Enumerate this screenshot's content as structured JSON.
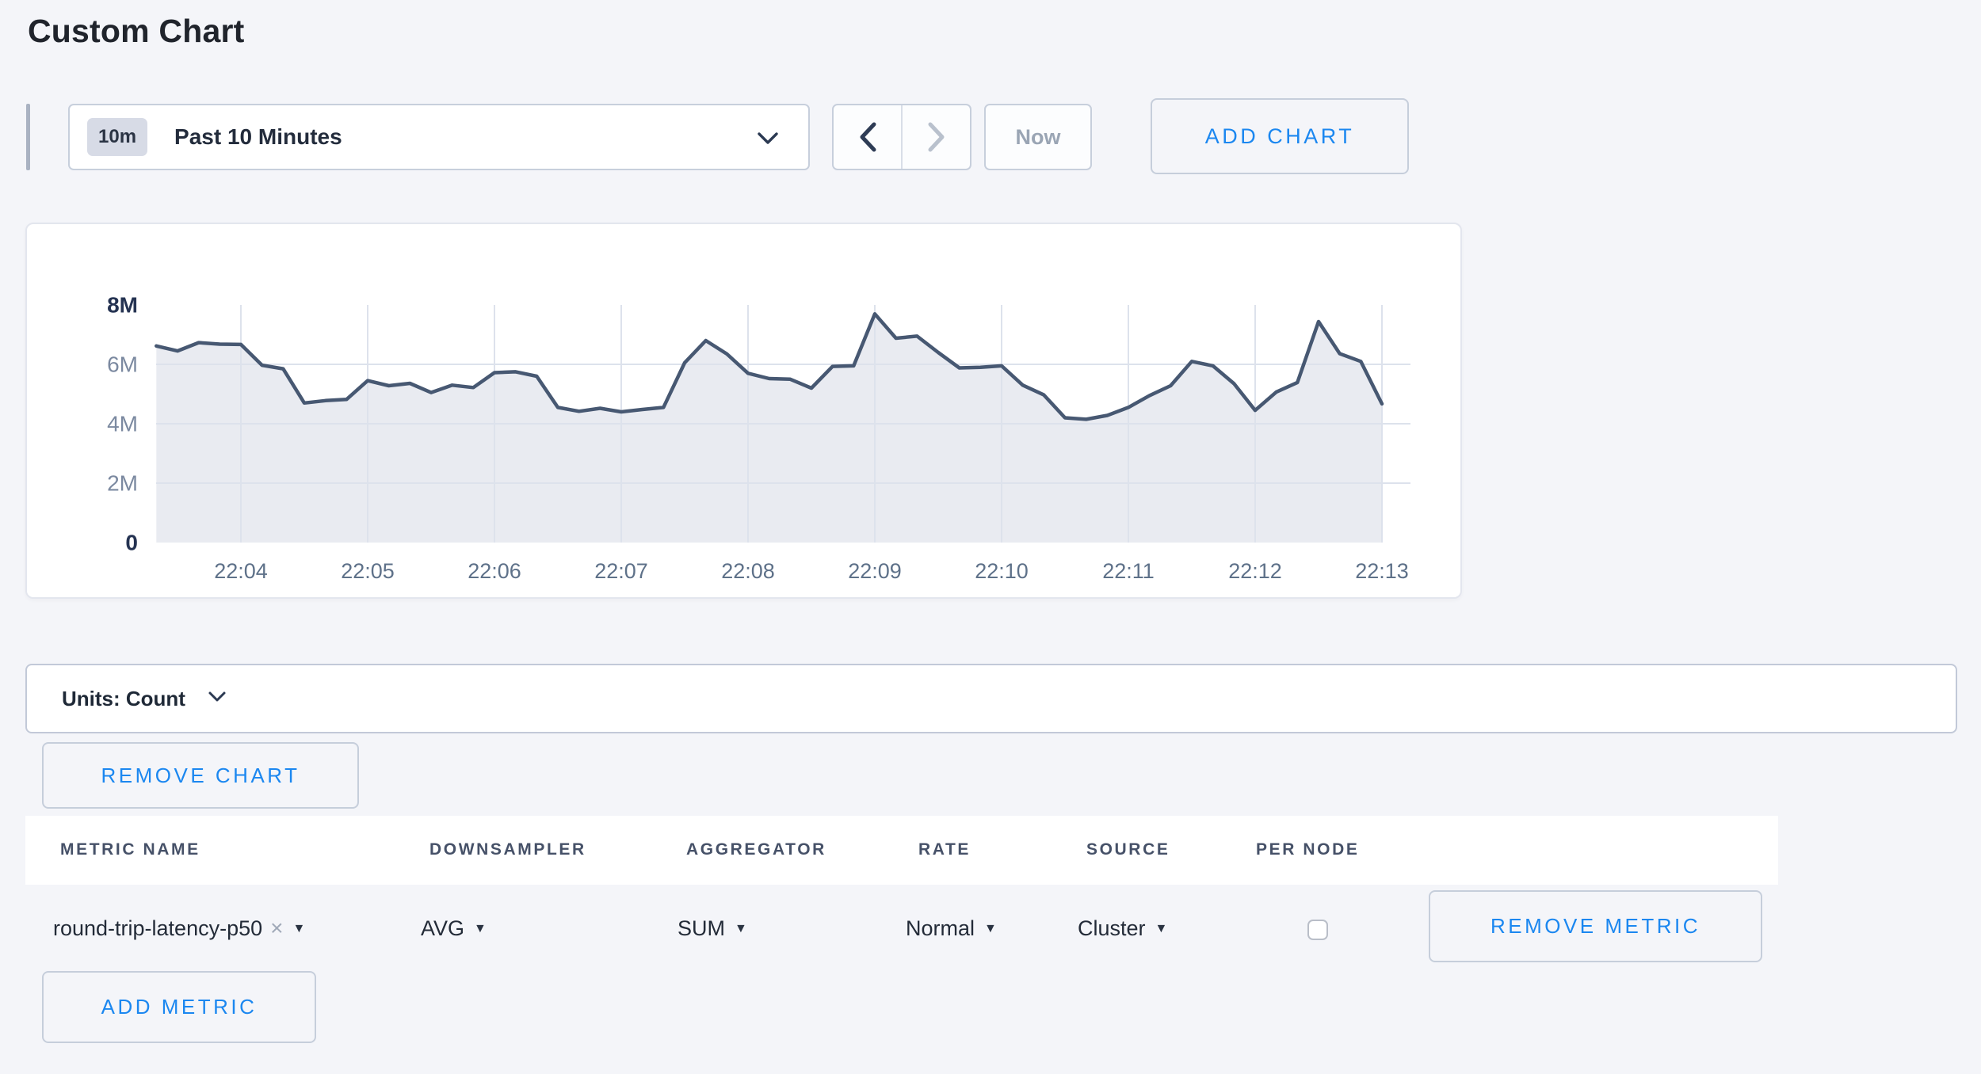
{
  "page": {
    "title": "Custom Chart"
  },
  "colors": {
    "accent_blue": "#1b87f0",
    "line": "#475872",
    "fill": "#e9ebf1",
    "grid": "#dde2ec",
    "axis_strong": "#253352",
    "axis_muted": "#7b89a0",
    "x_label": "#5e7189",
    "page_bg": "#f4f5f9"
  },
  "toolbar": {
    "range_badge": "10m",
    "range_label": "Past 10 Minutes",
    "prev_icon": "chevron-left",
    "next_icon": "chevron-right",
    "now_label": "Now",
    "add_chart_label": "ADD CHART"
  },
  "chart_data": {
    "type": "area",
    "title": "",
    "ylabel": "count",
    "value_unit": "millions",
    "ylim": [
      0,
      8000000
    ],
    "y_ticks": [
      "0",
      "2M",
      "4M",
      "6M",
      "8M"
    ],
    "x_ticks": [
      "22:04",
      "22:05",
      "22:06",
      "22:07",
      "22:08",
      "22:09",
      "22:10",
      "22:11",
      "22:12",
      "22:13"
    ],
    "grid": true,
    "legend": "none",
    "x": [
      "22:03:20",
      "22:03:30",
      "22:03:40",
      "22:03:50",
      "22:04:00",
      "22:04:10",
      "22:04:20",
      "22:04:30",
      "22:04:40",
      "22:04:50",
      "22:05:00",
      "22:05:10",
      "22:05:20",
      "22:05:30",
      "22:05:40",
      "22:05:50",
      "22:06:00",
      "22:06:10",
      "22:06:20",
      "22:06:30",
      "22:06:40",
      "22:06:50",
      "22:07:00",
      "22:07:10",
      "22:07:20",
      "22:07:30",
      "22:07:40",
      "22:07:50",
      "22:08:00",
      "22:08:10",
      "22:08:20",
      "22:08:30",
      "22:08:40",
      "22:08:50",
      "22:09:00",
      "22:09:10",
      "22:09:20",
      "22:09:30",
      "22:09:40",
      "22:09:50",
      "22:10:00",
      "22:10:10",
      "22:10:20",
      "22:10:30",
      "22:10:40",
      "22:10:50",
      "22:11:00",
      "22:11:10",
      "22:11:20",
      "22:11:30",
      "22:11:40",
      "22:11:50",
      "22:12:00",
      "22:12:10",
      "22:12:20",
      "22:12:30",
      "22:12:40",
      "22:12:50",
      "22:13:00"
    ],
    "values_millions": [
      6.62,
      6.45,
      6.73,
      6.68,
      6.67,
      5.97,
      5.85,
      4.7,
      4.78,
      4.82,
      5.45,
      5.28,
      5.36,
      5.05,
      5.3,
      5.22,
      5.72,
      5.75,
      5.6,
      4.55,
      4.42,
      4.52,
      4.4,
      4.48,
      4.55,
      6.05,
      6.8,
      6.35,
      5.7,
      5.52,
      5.5,
      5.2,
      5.93,
      5.95,
      7.7,
      6.88,
      6.95,
      6.4,
      5.88,
      5.9,
      5.95,
      5.3,
      4.97,
      4.2,
      4.15,
      4.28,
      4.55,
      4.95,
      5.28,
      6.1,
      5.95,
      5.35,
      4.45,
      5.07,
      5.39,
      7.44,
      6.36,
      6.1,
      4.67
    ]
  },
  "units_bar": {
    "label": "Units: Count"
  },
  "chart_actions": {
    "remove_chart_label": "REMOVE CHART",
    "add_metric_label": "ADD METRIC"
  },
  "metrics_table": {
    "headers": [
      "METRIC NAME",
      "DOWNSAMPLER",
      "AGGREGATOR",
      "RATE",
      "SOURCE",
      "PER NODE"
    ],
    "rows": [
      {
        "metric_name": "round-trip-latency-p50",
        "remove_x": "×",
        "downsampler": "AVG",
        "aggregator": "SUM",
        "rate": "Normal",
        "source": "Cluster",
        "per_node_checked": false,
        "remove_label": "REMOVE METRIC"
      }
    ]
  }
}
